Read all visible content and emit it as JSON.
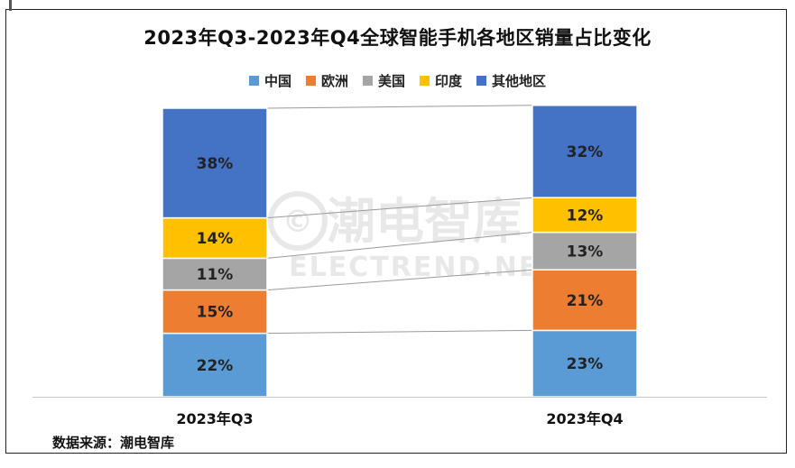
{
  "chart_data": {
    "type": "bar",
    "stacked": true,
    "percent": true,
    "title": "2023年Q3-2023年Q4全球智能手机各地区销量占比变化",
    "categories": [
      "2023年Q3",
      "2023年Q4"
    ],
    "series": [
      {
        "name": "中国",
        "color": "#5B9BD5",
        "values": [
          22,
          23
        ],
        "labels": [
          "22%",
          "23%"
        ]
      },
      {
        "name": "欧洲",
        "color": "#ED7D31",
        "values": [
          15,
          21
        ],
        "labels": [
          "15%",
          "21%"
        ]
      },
      {
        "name": "美国",
        "color": "#A5A5A5",
        "values": [
          11,
          13
        ],
        "labels": [
          "11%",
          "13%"
        ]
      },
      {
        "name": "印度",
        "color": "#FFC000",
        "values": [
          14,
          12
        ],
        "labels": [
          "14%",
          "12%"
        ]
      },
      {
        "name": "其他地区",
        "color": "#4472C4",
        "values": [
          38,
          32
        ],
        "labels": [
          "38%",
          "32%"
        ]
      }
    ],
    "ylim": [
      0,
      100
    ],
    "legend_position": "top",
    "series_lines": true,
    "grid": false
  },
  "watermark": {
    "text_cn": "潮电智库",
    "text_en": "ELECTREND.NET",
    "symbol": "©"
  },
  "source_note": "数据来源：潮电智库"
}
